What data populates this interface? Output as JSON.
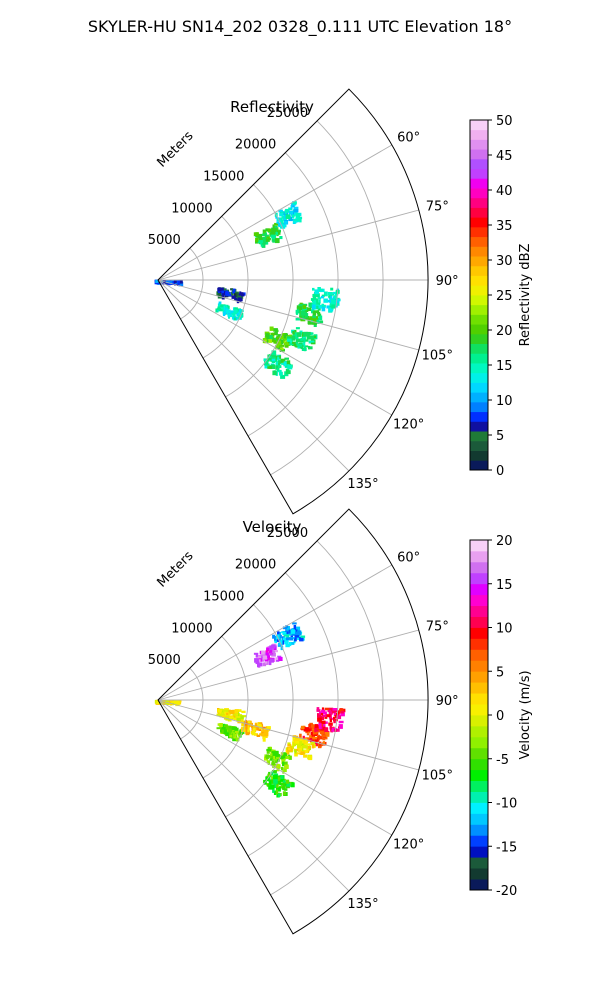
{
  "title": "SKYLER-HU  SN14_202  0328_0.111 UTC Elevation 18°",
  "range_label": "Meters",
  "chart_data": [
    {
      "type": "polar_sector",
      "title": "Reflectivity",
      "theta_range_deg": [
        45,
        150
      ],
      "theta_ticks": [
        "60°",
        "75°",
        "90°",
        "105°",
        "120°",
        "135°"
      ],
      "theta_tick_values": [
        60,
        75,
        90,
        105,
        120,
        135
      ],
      "r_range_m": [
        0,
        30000
      ],
      "r_ticks": [
        "5000",
        "10000",
        "15000",
        "20000",
        "25000"
      ],
      "r_tick_values": [
        5000,
        10000,
        15000,
        20000,
        25000
      ],
      "grid": true,
      "colorbar": {
        "label": "Reflectivity dBZ",
        "min": 0,
        "max": 50,
        "ticks": [
          "0",
          "5",
          "10",
          "15",
          "20",
          "25",
          "30",
          "35",
          "40",
          "45",
          "50"
        ],
        "tick_values": [
          0,
          5,
          10,
          15,
          20,
          25,
          30,
          35,
          40,
          45,
          50
        ]
      },
      "echo_regions": [
        {
          "theta": 67,
          "r": 13000,
          "value": 18
        },
        {
          "theta": 63,
          "r": 16000,
          "value": 13
        },
        {
          "theta": 92,
          "r": 1000,
          "value": 8
        },
        {
          "theta": 100,
          "r": 8000,
          "value": 5
        },
        {
          "theta": 113,
          "r": 8500,
          "value": 14
        },
        {
          "theta": 102,
          "r": 17000,
          "value": 18
        },
        {
          "theta": 96,
          "r": 18500,
          "value": 14
        },
        {
          "theta": 116,
          "r": 14500,
          "value": 20
        },
        {
          "theta": 112,
          "r": 17000,
          "value": 17
        },
        {
          "theta": 125,
          "r": 16000,
          "value": 16
        }
      ]
    },
    {
      "type": "polar_sector",
      "title": "Velocity",
      "theta_range_deg": [
        45,
        150
      ],
      "theta_ticks": [
        "60°",
        "75°",
        "90°",
        "105°",
        "120°",
        "135°"
      ],
      "theta_tick_values": [
        60,
        75,
        90,
        105,
        120,
        135
      ],
      "r_range_m": [
        0,
        30000
      ],
      "r_ticks": [
        "5000",
        "10000",
        "15000",
        "20000",
        "25000"
      ],
      "r_tick_values": [
        5000,
        10000,
        15000,
        20000,
        25000
      ],
      "grid": true,
      "colorbar": {
        "label": "Velocity (m/s)",
        "min": -20,
        "max": 20,
        "ticks": [
          "-20",
          "-15",
          "-10",
          "-5",
          "0",
          "5",
          "10",
          "15",
          "20"
        ],
        "tick_values": [
          -20,
          -15,
          -10,
          -5,
          0,
          5,
          10,
          15,
          20
        ]
      },
      "echo_regions": [
        {
          "theta": 67,
          "r": 13000,
          "value": 16
        },
        {
          "theta": 63,
          "r": 16000,
          "value": -12
        },
        {
          "theta": 92,
          "r": 1000,
          "value": 1
        },
        {
          "theta": 100,
          "r": 8000,
          "value": 1
        },
        {
          "theta": 113,
          "r": 8500,
          "value": -4
        },
        {
          "theta": 106,
          "r": 11000,
          "value": 3
        },
        {
          "theta": 102,
          "r": 17500,
          "value": 8
        },
        {
          "theta": 96,
          "r": 19000,
          "value": 11
        },
        {
          "theta": 116,
          "r": 14500,
          "value": -4
        },
        {
          "theta": 108,
          "r": 16500,
          "value": 1
        },
        {
          "theta": 125,
          "r": 16000,
          "value": -6
        }
      ]
    }
  ]
}
